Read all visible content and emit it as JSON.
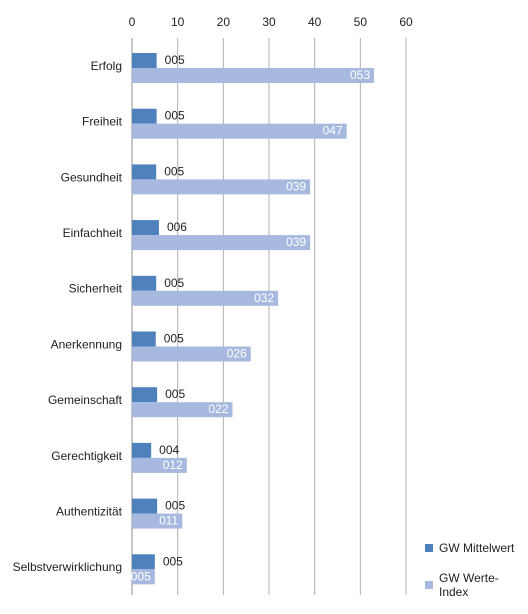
{
  "chart_data": {
    "type": "bar",
    "orientation": "horizontal",
    "categories": [
      "Erfolg",
      "Freiheit",
      "Gesundheit",
      "Einfachheit",
      "Sicherheit",
      "Anerkennung",
      "Gemeinschaft",
      "Gerechtigkeit",
      "Authentizität",
      "Selbstverwirklichung"
    ],
    "series": [
      {
        "name": "GW Mittelwert",
        "color": "#4f81bd",
        "values": [
          5.4,
          5.4,
          5.3,
          5.9,
          5.3,
          5.2,
          5.5,
          4.2,
          5.5,
          5.0
        ],
        "labels": [
          "005",
          "005",
          "005",
          "006",
          "005",
          "005",
          "005",
          "004",
          "005",
          "005"
        ]
      },
      {
        "name": "GW Werte-Index",
        "color": "#a7b9df",
        "values": [
          53,
          47,
          39,
          39,
          32,
          26,
          22,
          12,
          11,
          5
        ],
        "labels": [
          "053",
          "047",
          "039",
          "039",
          "032",
          "026",
          "022",
          "012",
          "011",
          "005"
        ]
      }
    ],
    "xlim": [
      0,
      60
    ],
    "xticks": [
      "0",
      "10",
      "20",
      "30",
      "40",
      "50",
      "60"
    ],
    "title": "",
    "xlabel": "",
    "ylabel": "",
    "grid": true,
    "legend_position": "bottom-right"
  }
}
